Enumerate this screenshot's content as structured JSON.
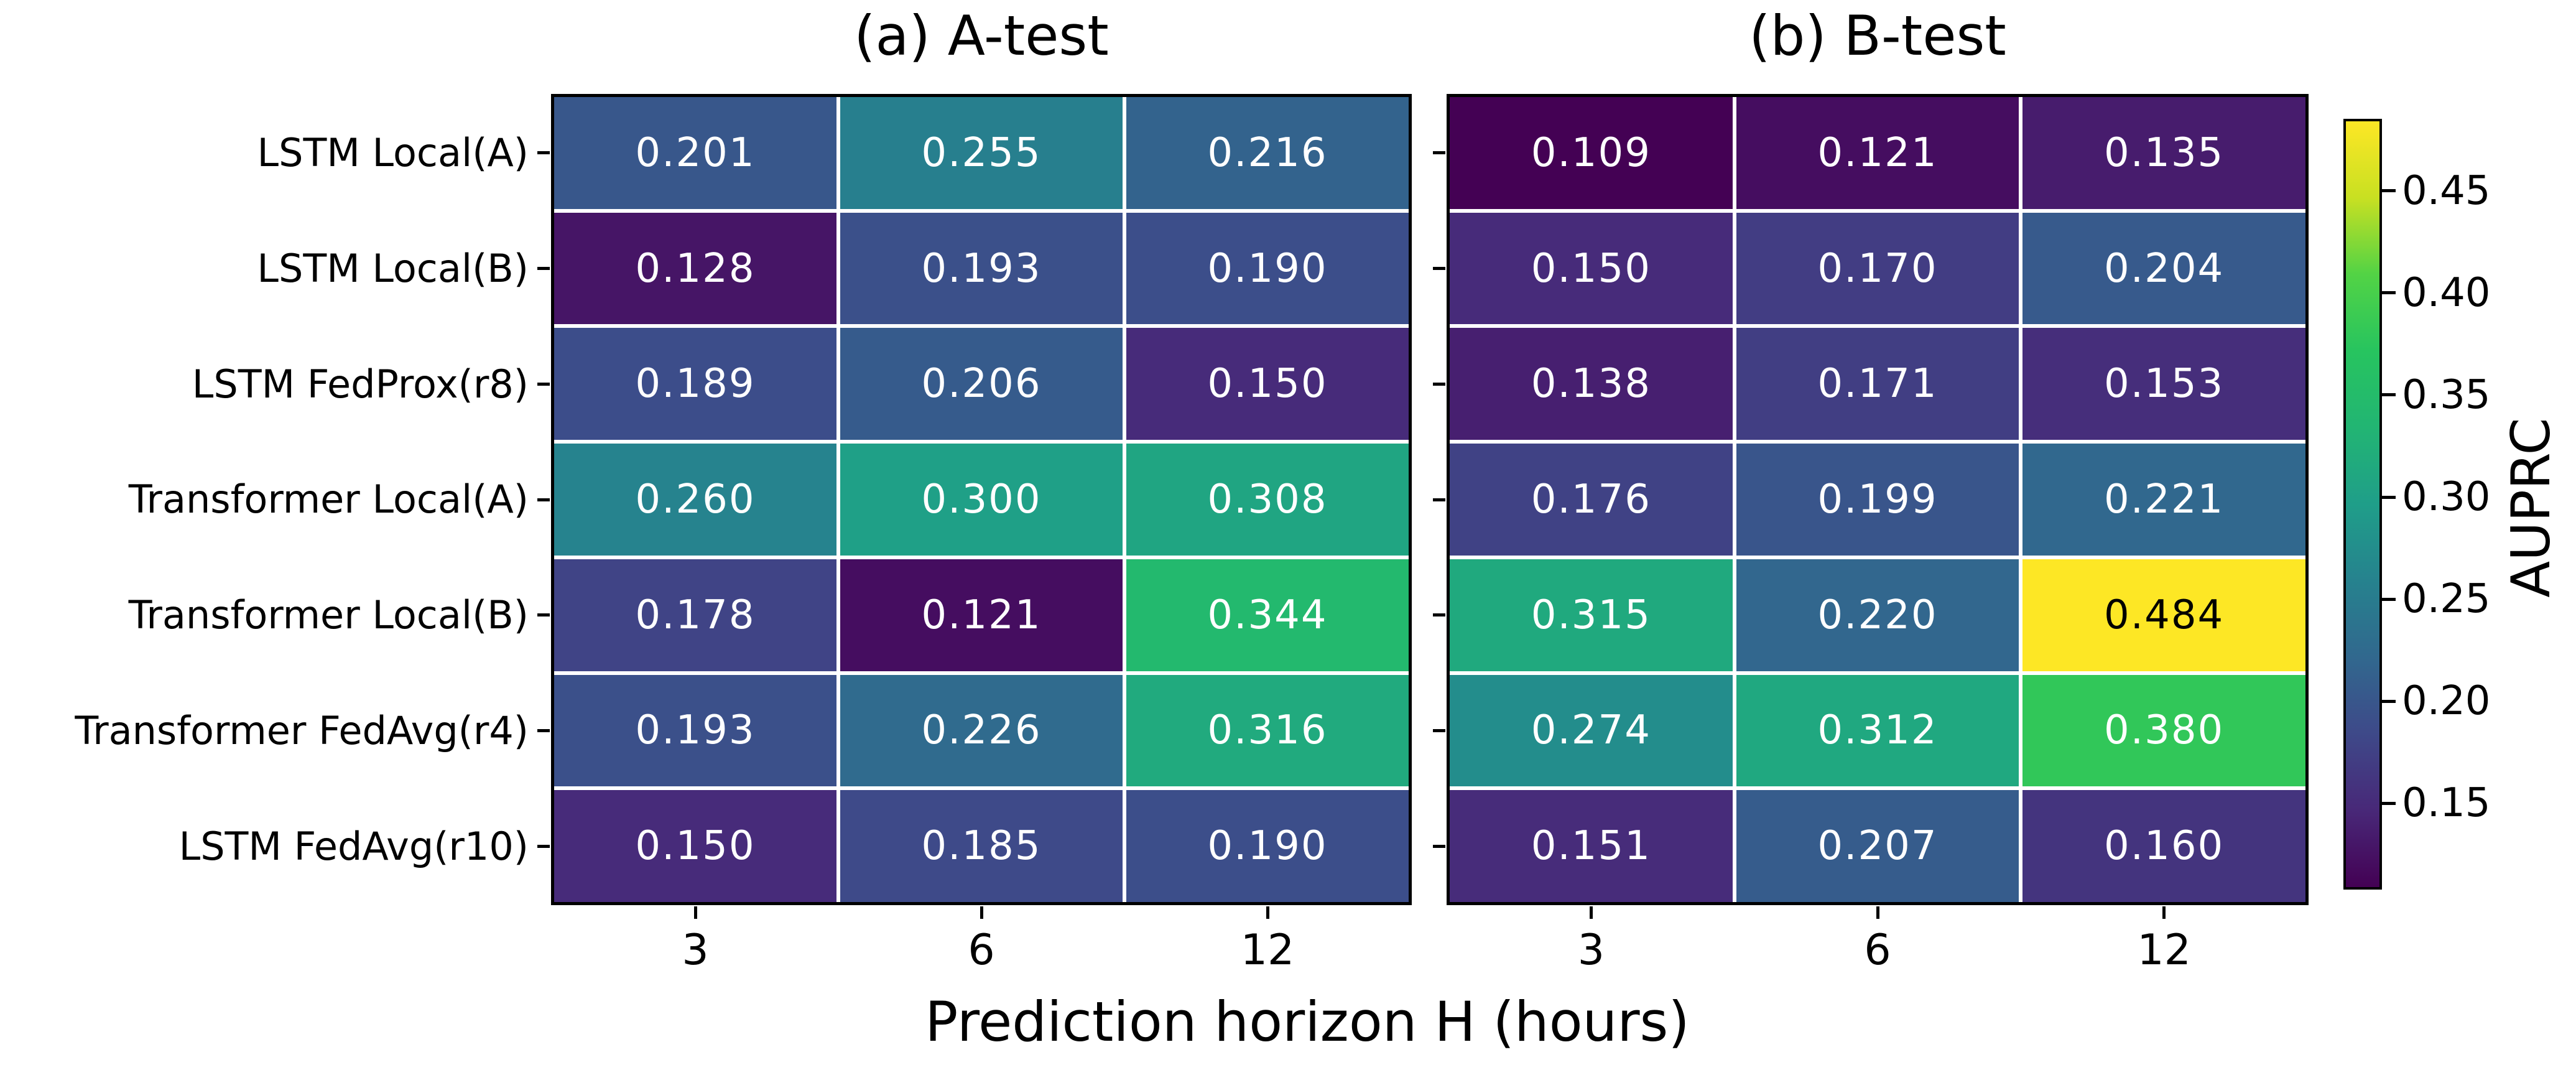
{
  "chart_data": [
    {
      "type": "heatmap",
      "title": "(a) A-test",
      "x_categories": [
        "3",
        "6",
        "12"
      ],
      "y_categories": [
        "LSTM Local(A)",
        "LSTM Local(B)",
        "LSTM FedProx(r8)",
        "Transformer Local(A)",
        "Transformer Local(B)",
        "Transformer FedAvg(r4)",
        "LSTM FedAvg(r10)"
      ],
      "values": [
        [
          0.201,
          0.255,
          0.216
        ],
        [
          0.128,
          0.193,
          0.19
        ],
        [
          0.189,
          0.206,
          0.15
        ],
        [
          0.26,
          0.3,
          0.308
        ],
        [
          0.178,
          0.121,
          0.344
        ],
        [
          0.193,
          0.226,
          0.316
        ],
        [
          0.15,
          0.185,
          0.19
        ]
      ],
      "show_y_tick_labels": true,
      "value_decimals": 3,
      "grid": false,
      "annotations": true
    },
    {
      "type": "heatmap",
      "title": "(b) B-test",
      "x_categories": [
        "3",
        "6",
        "12"
      ],
      "y_categories": [
        "LSTM Local(A)",
        "LSTM Local(B)",
        "LSTM FedProx(r8)",
        "Transformer Local(A)",
        "Transformer Local(B)",
        "Transformer FedAvg(r4)",
        "LSTM FedAvg(r10)"
      ],
      "values": [
        [
          0.109,
          0.121,
          0.135
        ],
        [
          0.15,
          0.17,
          0.204
        ],
        [
          0.138,
          0.171,
          0.153
        ],
        [
          0.176,
          0.199,
          0.221
        ],
        [
          0.315,
          0.22,
          0.484
        ],
        [
          0.274,
          0.312,
          0.38
        ],
        [
          0.151,
          0.207,
          0.16
        ]
      ],
      "show_y_tick_labels": false,
      "value_decimals": 3,
      "grid": false,
      "annotations": true
    }
  ],
  "axes": {
    "xlabel": "Prediction horizon H (hours)"
  },
  "colorbar": {
    "label": "AUPRC",
    "vmin": 0.109,
    "vmax": 0.484,
    "tick_values": [
      0.45,
      0.4,
      0.35,
      0.3,
      0.25,
      0.2,
      0.15
    ],
    "tick_labels": [
      "0.45",
      "0.40",
      "0.35",
      "0.30",
      "0.25",
      "0.20",
      "0.15"
    ],
    "colormap": "viridis",
    "stops": [
      "#440154",
      "#482878",
      "#3e4989",
      "#31688e",
      "#26828e",
      "#1f9e89",
      "#22b573",
      "#27c45f",
      "#52d345",
      "#c8e022",
      "#fde725"
    ]
  },
  "colors": {
    "background": "#ffffff",
    "spine": "#000000",
    "cell_gap": "#ffffff",
    "annot_light": "#ffffff",
    "annot_dark": "#000000"
  }
}
